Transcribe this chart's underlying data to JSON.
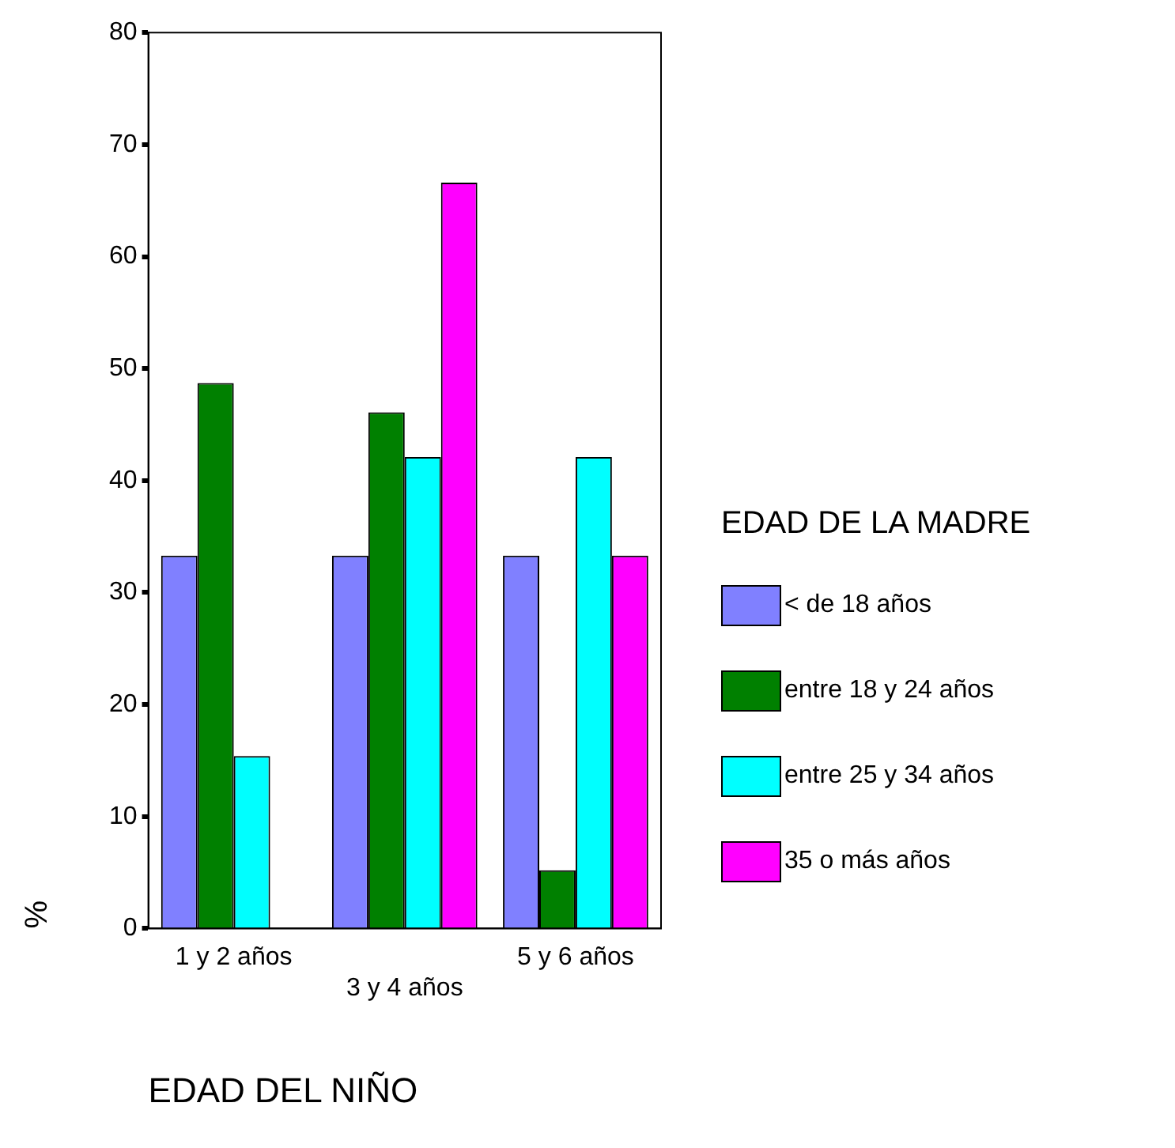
{
  "chart_data": {
    "type": "bar",
    "xlabel": "EDAD DEL NIÑO",
    "ylabel": "%",
    "legend_title": "EDAD DE LA MADRE",
    "legend": "right",
    "grid": false,
    "categories": [
      "1 y 2 años",
      "3 y 4 años",
      "5 y 6 años"
    ],
    "ylim": [
      0,
      80
    ],
    "yticks": [
      0,
      10,
      20,
      30,
      40,
      50,
      60,
      70,
      80
    ],
    "series": [
      {
        "name": "< de 18 años",
        "color": "#8080ff",
        "values": [
          33.3,
          33.3,
          33.3
        ]
      },
      {
        "name": "entre 18 y 24 años",
        "color": "#008000",
        "values": [
          48.7,
          46.1,
          5.2
        ]
      },
      {
        "name": "entre 25 y 34 años",
        "color": "#00ffff",
        "values": [
          15.4,
          42.1,
          42.1
        ]
      },
      {
        "name": "35 o más años",
        "color": "#ff00ff",
        "values": [
          0,
          66.6,
          33.3
        ]
      }
    ]
  }
}
